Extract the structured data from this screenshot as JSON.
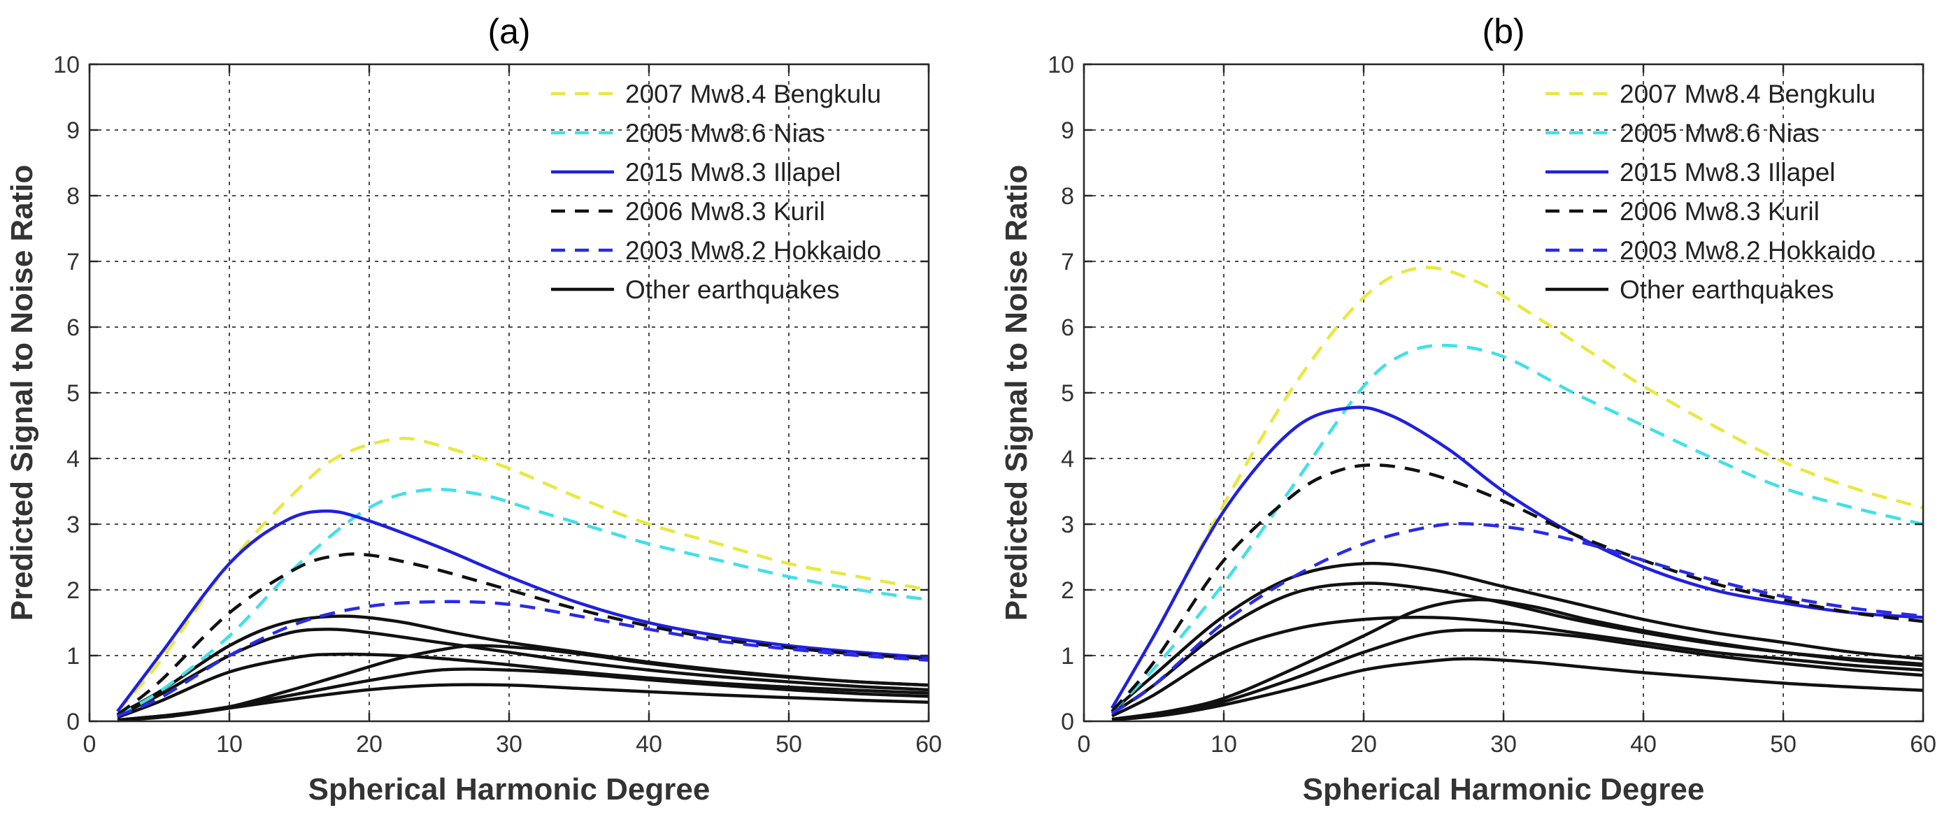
{
  "chart_data": [
    {
      "type": "line",
      "title": "(a)",
      "xlabel": "Spherical Harmonic Degree",
      "ylabel": "Predicted Signal to Noise Ratio",
      "xlim": [
        0,
        60
      ],
      "ylim": [
        0,
        10
      ],
      "xticks": [
        0,
        10,
        20,
        30,
        40,
        50,
        60
      ],
      "yticks": [
        0,
        1,
        2,
        3,
        4,
        5,
        6,
        7,
        8,
        9,
        10
      ],
      "grid": true,
      "legend_position": "top-right",
      "legend": [
        {
          "label": "2007 Mw8.4 Bengkulu",
          "color": "#e8e840",
          "dash": "dashed"
        },
        {
          "label": "2005 Mw8.6 Nias",
          "color": "#40e0e8",
          "dash": "dashed"
        },
        {
          "label": "2015 Mw8.3 Illapel",
          "color": "#2020e0",
          "dash": "solid"
        },
        {
          "label": "2006 Mw8.3 Kuril",
          "color": "#111111",
          "dash": "dashed"
        },
        {
          "label": "2003 Mw8.2 Hokkaido",
          "color": "#2a2ae8",
          "dash": "dashed"
        },
        {
          "label": "Other earthquakes",
          "color": "#111111",
          "dash": "solid"
        }
      ],
      "series": [
        {
          "name": "2007 Mw8.4 Bengkulu",
          "color": "#e8e840",
          "dash": "dashed",
          "x": [
            2,
            5,
            10,
            15,
            18,
            22,
            25,
            30,
            35,
            40,
            45,
            50,
            55,
            60
          ],
          "y": [
            0.15,
            0.9,
            2.4,
            3.55,
            4.05,
            4.3,
            4.2,
            3.85,
            3.4,
            3.0,
            2.7,
            2.4,
            2.2,
            2.0
          ]
        },
        {
          "name": "2005 Mw8.6 Nias",
          "color": "#40e0e8",
          "dash": "dashed",
          "x": [
            2,
            5,
            10,
            15,
            20,
            24,
            28,
            32,
            36,
            40,
            45,
            50,
            55,
            60
          ],
          "y": [
            0.1,
            0.45,
            1.3,
            2.4,
            3.25,
            3.52,
            3.45,
            3.2,
            2.95,
            2.7,
            2.45,
            2.2,
            2.0,
            1.85
          ]
        },
        {
          "name": "2015 Mw8.3 Illapel",
          "color": "#2020e0",
          "dash": "solid",
          "x": [
            2,
            5,
            10,
            14,
            17,
            20,
            25,
            30,
            35,
            40,
            45,
            50,
            55,
            60
          ],
          "y": [
            0.15,
            1.0,
            2.4,
            3.05,
            3.2,
            3.05,
            2.65,
            2.2,
            1.8,
            1.5,
            1.3,
            1.15,
            1.05,
            0.97
          ]
        },
        {
          "name": "2006 Mw8.3 Kuril",
          "color": "#111111",
          "dash": "dashed",
          "x": [
            2,
            5,
            10,
            15,
            18,
            20,
            22,
            25,
            30,
            35,
            40,
            45,
            50,
            55,
            60
          ],
          "y": [
            0.1,
            0.6,
            1.65,
            2.35,
            2.53,
            2.53,
            2.45,
            2.3,
            2.0,
            1.7,
            1.45,
            1.25,
            1.12,
            1.02,
            0.95
          ]
        },
        {
          "name": "2003 Mw8.2 Hokkaido",
          "color": "#2a2ae8",
          "dash": "dashed",
          "x": [
            2,
            5,
            10,
            15,
            20,
            25,
            30,
            35,
            40,
            45,
            50,
            55,
            60
          ],
          "y": [
            0.08,
            0.35,
            1.0,
            1.5,
            1.75,
            1.82,
            1.78,
            1.6,
            1.4,
            1.22,
            1.1,
            1.0,
            0.93
          ]
        },
        {
          "name": "Other earthquakes 1",
          "color": "#111111",
          "dash": "solid",
          "x": [
            2,
            5,
            10,
            14,
            18,
            22,
            26,
            30,
            35,
            40,
            45,
            50,
            55,
            60
          ],
          "y": [
            0.1,
            0.45,
            1.15,
            1.5,
            1.6,
            1.52,
            1.35,
            1.2,
            1.05,
            0.9,
            0.78,
            0.68,
            0.6,
            0.55
          ]
        },
        {
          "name": "Other earthquakes 2",
          "color": "#111111",
          "dash": "solid",
          "x": [
            2,
            5,
            10,
            14,
            17,
            20,
            25,
            30,
            35,
            40,
            45,
            50,
            55,
            60
          ],
          "y": [
            0.08,
            0.4,
            1.0,
            1.33,
            1.4,
            1.35,
            1.2,
            1.05,
            0.9,
            0.78,
            0.68,
            0.6,
            0.53,
            0.48
          ]
        },
        {
          "name": "Other earthquakes 3",
          "color": "#111111",
          "dash": "solid",
          "x": [
            2,
            5,
            10,
            15,
            18,
            22,
            26,
            30,
            35,
            40,
            45,
            50,
            55,
            60
          ],
          "y": [
            0.06,
            0.3,
            0.75,
            0.98,
            1.02,
            1.0,
            0.94,
            0.86,
            0.75,
            0.66,
            0.58,
            0.52,
            0.47,
            0.43
          ]
        },
        {
          "name": "Other earthquakes 4",
          "color": "#111111",
          "dash": "solid",
          "x": [
            2,
            6,
            10,
            14,
            18,
            22,
            26,
            28,
            32,
            36,
            40,
            45,
            50,
            55,
            60
          ],
          "y": [
            0.02,
            0.1,
            0.22,
            0.45,
            0.7,
            0.95,
            1.12,
            1.15,
            1.1,
            1.0,
            0.88,
            0.76,
            0.67,
            0.6,
            0.55
          ]
        },
        {
          "name": "Other earthquakes 5",
          "color": "#111111",
          "dash": "solid",
          "x": [
            2,
            6,
            10,
            15,
            20,
            25,
            30,
            35,
            40,
            45,
            50,
            55,
            60
          ],
          "y": [
            0.02,
            0.1,
            0.22,
            0.42,
            0.62,
            0.78,
            0.78,
            0.72,
            0.63,
            0.55,
            0.48,
            0.42,
            0.38
          ]
        },
        {
          "name": "Other earthquakes 6",
          "color": "#111111",
          "dash": "solid",
          "x": [
            2,
            6,
            10,
            15,
            20,
            25,
            30,
            35,
            40,
            45,
            50,
            55,
            60
          ],
          "y": [
            0.01,
            0.08,
            0.2,
            0.35,
            0.48,
            0.55,
            0.55,
            0.5,
            0.45,
            0.4,
            0.36,
            0.32,
            0.29
          ]
        }
      ]
    },
    {
      "type": "line",
      "title": "(b)",
      "xlabel": "Spherical Harmonic Degree",
      "ylabel": "Predicted Signal to Noise Ratio",
      "xlim": [
        0,
        60
      ],
      "ylim": [
        0,
        10
      ],
      "xticks": [
        0,
        10,
        20,
        30,
        40,
        50,
        60
      ],
      "yticks": [
        0,
        1,
        2,
        3,
        4,
        5,
        6,
        7,
        8,
        9,
        10
      ],
      "grid": true,
      "legend_position": "top-right",
      "legend": [
        {
          "label": "2007 Mw8.4 Bengkulu",
          "color": "#e8e840",
          "dash": "dashed"
        },
        {
          "label": "2005 Mw8.6 Nias",
          "color": "#40e0e8",
          "dash": "dashed"
        },
        {
          "label": "2015 Mw8.3 Illapel",
          "color": "#2020e0",
          "dash": "solid"
        },
        {
          "label": "2006 Mw8.3 Kuril",
          "color": "#111111",
          "dash": "dashed"
        },
        {
          "label": "2003 Mw8.2 Hokkaido",
          "color": "#2a2ae8",
          "dash": "dashed"
        },
        {
          "label": "Other earthquakes",
          "color": "#111111",
          "dash": "solid"
        }
      ],
      "series": [
        {
          "name": "2007 Mw8.4 Bengkulu",
          "color": "#e8e840",
          "dash": "dashed",
          "x": [
            2,
            5,
            10,
            15,
            20,
            24,
            28,
            32,
            36,
            40,
            45,
            50,
            55,
            60
          ],
          "y": [
            0.2,
            1.3,
            3.3,
            5.1,
            6.45,
            6.9,
            6.7,
            6.2,
            5.65,
            5.1,
            4.5,
            3.95,
            3.55,
            3.25
          ]
        },
        {
          "name": "2005 Mw8.6 Nias",
          "color": "#40e0e8",
          "dash": "dashed",
          "x": [
            2,
            5,
            10,
            15,
            20,
            23,
            26,
            30,
            35,
            40,
            45,
            50,
            55,
            60
          ],
          "y": [
            0.15,
            0.8,
            2.1,
            3.6,
            5.1,
            5.6,
            5.72,
            5.55,
            5.0,
            4.5,
            4.0,
            3.55,
            3.25,
            3.0
          ]
        },
        {
          "name": "2015 Mw8.3 Illapel",
          "color": "#2020e0",
          "dash": "solid",
          "x": [
            2,
            5,
            10,
            15,
            19,
            22,
            26,
            30,
            35,
            40,
            45,
            50,
            55,
            60
          ],
          "y": [
            0.2,
            1.3,
            3.2,
            4.45,
            4.77,
            4.65,
            4.15,
            3.5,
            2.85,
            2.35,
            2.0,
            1.8,
            1.65,
            1.58
          ]
        },
        {
          "name": "2006 Mw8.3 Kuril",
          "color": "#111111",
          "dash": "dashed",
          "x": [
            2,
            5,
            10,
            15,
            18,
            21,
            25,
            30,
            35,
            40,
            45,
            50,
            55,
            60
          ],
          "y": [
            0.15,
            0.9,
            2.45,
            3.45,
            3.8,
            3.9,
            3.75,
            3.35,
            2.85,
            2.45,
            2.1,
            1.85,
            1.65,
            1.52
          ]
        },
        {
          "name": "2003 Mw8.2 Hokkaido",
          "color": "#2a2ae8",
          "dash": "dashed",
          "x": [
            2,
            5,
            10,
            15,
            20,
            25,
            28,
            32,
            36,
            40,
            45,
            50,
            55,
            60
          ],
          "y": [
            0.12,
            0.55,
            1.5,
            2.2,
            2.7,
            2.97,
            3.0,
            2.9,
            2.7,
            2.45,
            2.15,
            1.9,
            1.72,
            1.6
          ]
        },
        {
          "name": "Other earthquakes 1",
          "color": "#111111",
          "dash": "solid",
          "x": [
            2,
            5,
            10,
            15,
            20,
            25,
            30,
            35,
            40,
            45,
            50,
            55,
            60
          ],
          "y": [
            0.15,
            0.7,
            1.6,
            2.2,
            2.4,
            2.3,
            2.05,
            1.8,
            1.55,
            1.35,
            1.2,
            1.05,
            0.95
          ]
        },
        {
          "name": "Other earthquakes 2",
          "color": "#111111",
          "dash": "solid",
          "x": [
            2,
            5,
            10,
            15,
            20,
            25,
            30,
            35,
            40,
            45,
            50,
            55,
            60
          ],
          "y": [
            0.12,
            0.55,
            1.4,
            1.95,
            2.1,
            2.0,
            1.8,
            1.55,
            1.35,
            1.18,
            1.05,
            0.95,
            0.87
          ]
        },
        {
          "name": "Other earthquakes 3",
          "color": "#111111",
          "dash": "solid",
          "x": [
            2,
            5,
            10,
            15,
            20,
            25,
            30,
            35,
            40,
            45,
            50,
            55,
            60
          ],
          "y": [
            0.08,
            0.4,
            1.05,
            1.4,
            1.55,
            1.58,
            1.5,
            1.35,
            1.2,
            1.05,
            0.95,
            0.85,
            0.78
          ]
        },
        {
          "name": "Other earthquakes 4",
          "color": "#111111",
          "dash": "solid",
          "x": [
            2,
            6,
            10,
            15,
            20,
            24,
            28,
            32,
            36,
            40,
            45,
            50,
            55,
            60
          ],
          "y": [
            0.03,
            0.15,
            0.35,
            0.8,
            1.3,
            1.7,
            1.85,
            1.75,
            1.55,
            1.38,
            1.2,
            1.05,
            0.93,
            0.85
          ]
        },
        {
          "name": "Other earthquakes 5",
          "color": "#111111",
          "dash": "solid",
          "x": [
            2,
            6,
            10,
            15,
            20,
            25,
            30,
            35,
            40,
            45,
            50,
            55,
            60
          ],
          "y": [
            0.02,
            0.12,
            0.3,
            0.65,
            1.05,
            1.35,
            1.38,
            1.3,
            1.15,
            1.0,
            0.88,
            0.78,
            0.7
          ]
        },
        {
          "name": "Other earthquakes 6",
          "color": "#111111",
          "dash": "solid",
          "x": [
            2,
            6,
            10,
            15,
            20,
            25,
            28,
            32,
            36,
            40,
            45,
            50,
            55,
            60
          ],
          "y": [
            0.02,
            0.1,
            0.25,
            0.5,
            0.78,
            0.92,
            0.95,
            0.9,
            0.82,
            0.74,
            0.66,
            0.58,
            0.52,
            0.47
          ]
        }
      ]
    }
  ]
}
